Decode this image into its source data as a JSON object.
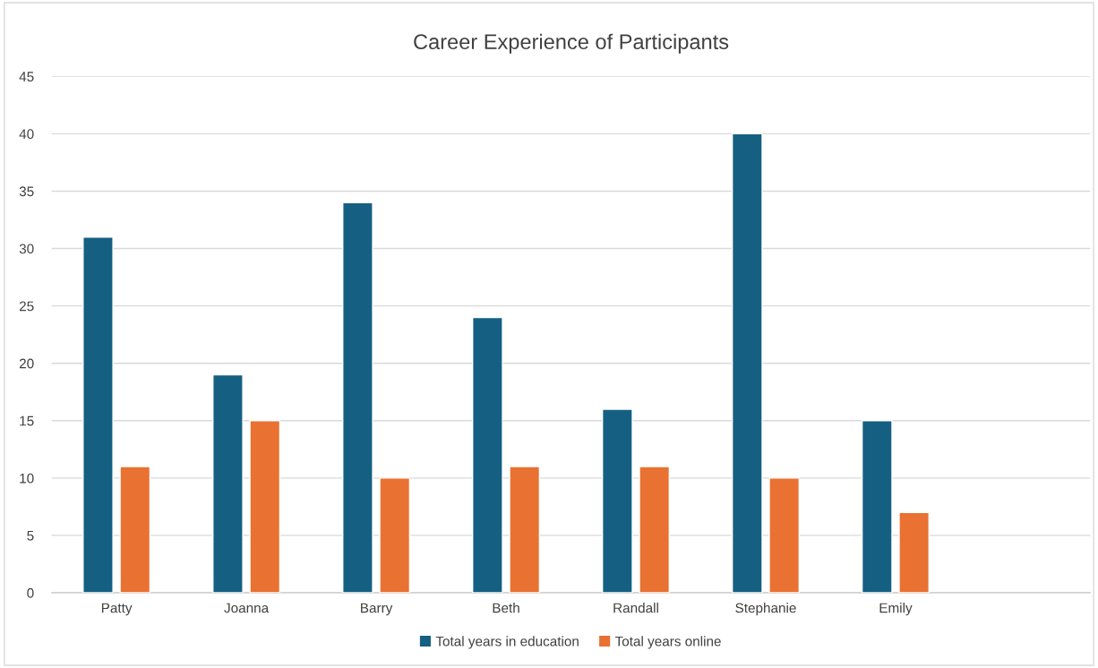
{
  "chart_data": {
    "type": "bar",
    "title": "Career Experience of Participants",
    "categories": [
      "Patty",
      "Joanna",
      "Barry",
      "Beth",
      "Randall",
      "Stephanie",
      "Emily",
      null
    ],
    "series": [
      {
        "name": "Total years in education",
        "color": "#156082",
        "values": [
          31,
          19,
          34,
          24,
          16,
          40,
          15,
          null
        ]
      },
      {
        "name": "Total years online",
        "color": "#e97132",
        "values": [
          11,
          15,
          10,
          11,
          11,
          10,
          7,
          null
        ]
      }
    ],
    "ylim": [
      0,
      45
    ],
    "yticks": [
      0,
      5,
      10,
      15,
      20,
      25,
      30,
      35,
      40,
      45
    ],
    "grid": "y",
    "legend": "bottom"
  }
}
